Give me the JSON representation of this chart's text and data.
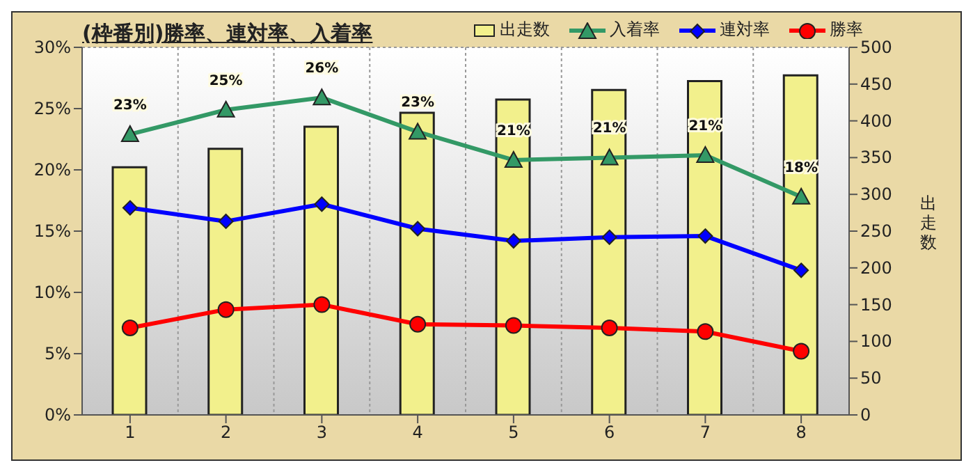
{
  "chart_data": {
    "type": "bar",
    "title": "(枠番別)勝率、連対率、入着率",
    "categories": [
      "1",
      "2",
      "3",
      "4",
      "5",
      "6",
      "7",
      "8"
    ],
    "series": [
      {
        "name": "出走数",
        "axis": "y2",
        "color": "#f2f08c",
        "values": [
          337,
          362,
          392,
          411,
          429,
          442,
          454,
          462
        ]
      },
      {
        "name": "入着率",
        "type": "line",
        "color": "#339966",
        "marker": "triangle",
        "values": [
          22.9,
          24.9,
          25.9,
          23.1,
          20.8,
          21.0,
          21.2,
          17.8
        ],
        "value_labels": [
          "23%",
          "25%",
          "26%",
          "23%",
          "21%",
          "21%",
          "21%",
          "18%"
        ]
      },
      {
        "name": "連対率",
        "type": "line",
        "color": "#0000ff",
        "marker": "diamond",
        "values": [
          16.9,
          15.8,
          17.2,
          15.2,
          14.2,
          14.5,
          14.6,
          11.8
        ]
      },
      {
        "name": "勝率",
        "type": "line",
        "color": "#ff0000",
        "marker": "circle",
        "values": [
          7.1,
          8.6,
          9.0,
          7.4,
          7.3,
          7.1,
          6.8,
          5.2
        ]
      }
    ],
    "ylim": [
      0,
      30
    ],
    "yticks": [
      {
        "value": 0,
        "label": "0%"
      },
      {
        "value": 5,
        "label": "5%"
      },
      {
        "value": 10,
        "label": "10%"
      },
      {
        "value": 15,
        "label": "15%"
      },
      {
        "value": 20,
        "label": "20%"
      },
      {
        "value": 25,
        "label": "25%"
      },
      {
        "value": 30,
        "label": "30%"
      }
    ],
    "y2label": "出走数",
    "y2lim": [
      0,
      500
    ],
    "y2ticks": [
      0,
      50,
      100,
      150,
      200,
      250,
      300,
      350,
      400,
      450,
      500
    ],
    "grid": true,
    "legend": "top right"
  }
}
